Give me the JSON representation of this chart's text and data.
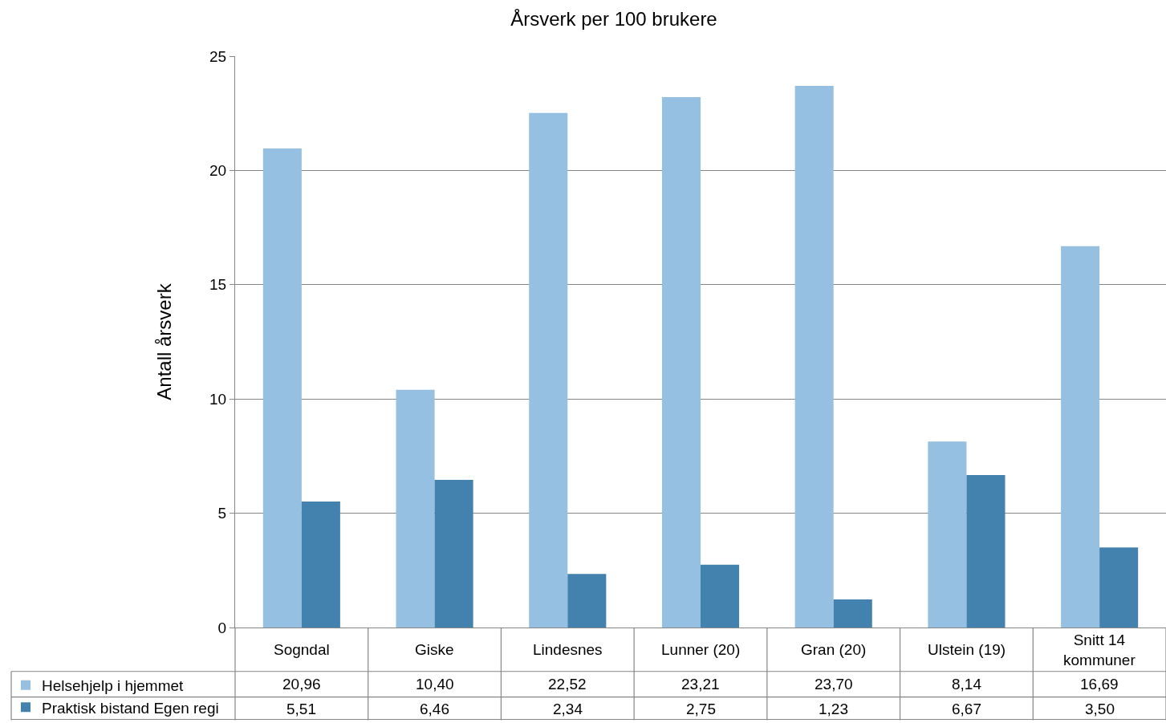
{
  "chart_data": {
    "type": "bar",
    "title": "Årsverk per 100 brukere",
    "ylabel": "Antall årsverk",
    "categories": [
      "Sogndal",
      "Giske",
      "Lindesnes",
      "Lunner (20)",
      "Gran (20)",
      "Ulstein (19)",
      "Snitt 14 kommuner"
    ],
    "series": [
      {
        "name": "Helsehjelp i hjemmet",
        "color": "#95c0e1",
        "values": [
          20.96,
          10.4,
          22.52,
          23.21,
          23.7,
          8.14,
          16.69
        ],
        "value_labels": [
          "20,96",
          "10,40",
          "22,52",
          "23,21",
          "23,70",
          "8,14",
          "16,69"
        ]
      },
      {
        "name": "Praktisk bistand Egen regi",
        "color": "#4382ae",
        "values": [
          5.51,
          6.46,
          2.34,
          2.75,
          1.23,
          6.67,
          3.5
        ],
        "value_labels": [
          "5,51",
          "6,46",
          "2,34",
          "2,75",
          "1,23",
          "6,67",
          "3,50"
        ]
      }
    ],
    "ylim": [
      0,
      25
    ],
    "yticks": [
      0,
      5,
      10,
      15,
      20,
      25
    ],
    "grid": "y",
    "legend": "bottom left"
  }
}
